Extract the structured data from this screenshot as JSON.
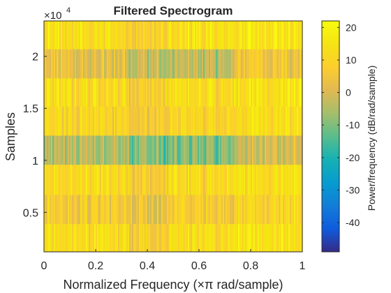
{
  "chart_data": {
    "type": "heatmap",
    "title": "Filtered Spectrogram",
    "xlabel": "Normalized Frequency  (×π rad/sample)",
    "ylabel": "Samples",
    "y_exponent_label": "×10",
    "y_exponent_power": "4",
    "xlim": [
      0,
      1
    ],
    "ylim": [
      1200,
      23400
    ],
    "x_ticks": [
      {
        "value": 0,
        "label": "0"
      },
      {
        "value": 0.2,
        "label": "0.2"
      },
      {
        "value": 0.4,
        "label": "0.4"
      },
      {
        "value": 0.6,
        "label": "0.6"
      },
      {
        "value": 0.8,
        "label": "0.8"
      },
      {
        "value": 1,
        "label": "1"
      }
    ],
    "y_ticks": [
      {
        "value": 5000,
        "label": "0.5"
      },
      {
        "value": 10000,
        "label": "1"
      },
      {
        "value": 15000,
        "label": "1.5"
      },
      {
        "value": 20000,
        "label": "2"
      }
    ],
    "colorbar": {
      "label": "Power/frequency (dB/rad/sample)",
      "clim": [
        -49,
        22
      ],
      "ticks": [
        {
          "value": 20,
          "label": "20"
        },
        {
          "value": 10,
          "label": "10"
        },
        {
          "value": 0,
          "label": "0"
        },
        {
          "value": -10,
          "label": "-10"
        },
        {
          "value": -20,
          "label": "-20"
        },
        {
          "value": -30,
          "label": "-30"
        },
        {
          "value": -40,
          "label": "-40"
        }
      ]
    },
    "colormap": "parula",
    "row_bands": [
      {
        "y_start": 1200,
        "y_end": 3900,
        "mean_db": 12
      },
      {
        "y_start": 3900,
        "y_end": 6700,
        "mean_db": 7
      },
      {
        "y_start": 6700,
        "y_end": 9600,
        "mean_db": 11
      },
      {
        "y_start": 9600,
        "y_end": 12400,
        "mean_db": -4
      },
      {
        "y_start": 12400,
        "y_end": 15200,
        "mean_db": 10
      },
      {
        "y_start": 15200,
        "y_end": 17900,
        "mean_db": 12
      },
      {
        "y_start": 17900,
        "y_end": 20700,
        "mean_db": 2
      },
      {
        "y_start": 20700,
        "y_end": 23400,
        "mean_db": 13
      }
    ]
  }
}
